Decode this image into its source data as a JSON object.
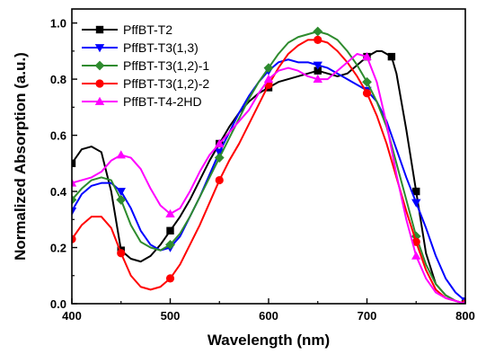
{
  "chart_data": {
    "type": "line",
    "xlabel": "Wavelength (nm)",
    "ylabel": "Normalized Absorption (a.u.)",
    "xlim": [
      400,
      800
    ],
    "ylim": [
      0.0,
      1.05
    ],
    "x_ticks": [
      400,
      500,
      600,
      700,
      800
    ],
    "x_tick_labels": [
      "400",
      "500",
      "600",
      "700",
      "800"
    ],
    "y_ticks": [
      0.0,
      0.2,
      0.4,
      0.6,
      0.8,
      1.0
    ],
    "y_tick_labels": [
      "0.0",
      "0.2",
      "0.4",
      "0.6",
      "0.8",
      "1.0"
    ],
    "legend_position": "top-left",
    "grid": false,
    "series": [
      {
        "name": "PffBT-T2",
        "color": "#000000",
        "marker": "square",
        "x": [
          400,
          410,
          420,
          430,
          440,
          450,
          460,
          470,
          480,
          490,
          500,
          510,
          520,
          530,
          540,
          550,
          560,
          570,
          580,
          590,
          600,
          610,
          620,
          630,
          640,
          650,
          660,
          670,
          680,
          690,
          700,
          710,
          715,
          720,
          725,
          730,
          740,
          750,
          760,
          770,
          780,
          790,
          800
        ],
        "y": [
          0.5,
          0.55,
          0.56,
          0.54,
          0.4,
          0.19,
          0.16,
          0.15,
          0.17,
          0.21,
          0.26,
          0.31,
          0.37,
          0.44,
          0.51,
          0.57,
          0.63,
          0.68,
          0.72,
          0.75,
          0.77,
          0.79,
          0.8,
          0.81,
          0.82,
          0.83,
          0.82,
          0.81,
          0.82,
          0.85,
          0.88,
          0.9,
          0.9,
          0.89,
          0.88,
          0.82,
          0.62,
          0.4,
          0.18,
          0.07,
          0.03,
          0.01,
          0.0
        ]
      },
      {
        "name": "PffBT-T3(1,3)",
        "color": "#0000ff",
        "marker": "triangle-down",
        "x": [
          400,
          410,
          420,
          430,
          440,
          450,
          460,
          470,
          480,
          490,
          500,
          510,
          520,
          530,
          540,
          550,
          560,
          570,
          580,
          590,
          600,
          610,
          620,
          630,
          640,
          650,
          660,
          670,
          680,
          690,
          700,
          710,
          720,
          730,
          740,
          750,
          760,
          770,
          780,
          790,
          800
        ],
        "y": [
          0.33,
          0.39,
          0.42,
          0.43,
          0.43,
          0.4,
          0.34,
          0.26,
          0.21,
          0.19,
          0.2,
          0.24,
          0.31,
          0.38,
          0.46,
          0.54,
          0.61,
          0.68,
          0.74,
          0.79,
          0.83,
          0.86,
          0.87,
          0.86,
          0.86,
          0.85,
          0.84,
          0.82,
          0.8,
          0.78,
          0.76,
          0.72,
          0.65,
          0.55,
          0.45,
          0.36,
          0.27,
          0.17,
          0.09,
          0.04,
          0.01
        ]
      },
      {
        "name": "PffBT-T3(1,2)-1",
        "color": "#2e8b2e",
        "marker": "diamond",
        "x": [
          400,
          410,
          420,
          430,
          440,
          450,
          460,
          470,
          480,
          490,
          500,
          510,
          520,
          530,
          540,
          550,
          560,
          570,
          580,
          590,
          600,
          610,
          620,
          630,
          640,
          650,
          660,
          670,
          680,
          690,
          700,
          710,
          720,
          730,
          740,
          750,
          760,
          770,
          780,
          790,
          800
        ],
        "y": [
          0.37,
          0.41,
          0.44,
          0.45,
          0.44,
          0.37,
          0.28,
          0.22,
          0.2,
          0.19,
          0.21,
          0.25,
          0.31,
          0.38,
          0.45,
          0.52,
          0.59,
          0.66,
          0.73,
          0.79,
          0.84,
          0.89,
          0.93,
          0.95,
          0.96,
          0.97,
          0.96,
          0.94,
          0.9,
          0.85,
          0.79,
          0.72,
          0.63,
          0.5,
          0.37,
          0.24,
          0.14,
          0.07,
          0.03,
          0.01,
          0.0
        ]
      },
      {
        "name": "PffBT-T3(1,2)-2",
        "color": "#ff0000",
        "marker": "circle",
        "x": [
          400,
          410,
          420,
          430,
          440,
          450,
          460,
          470,
          480,
          490,
          500,
          510,
          520,
          530,
          540,
          550,
          560,
          570,
          580,
          590,
          600,
          610,
          620,
          630,
          640,
          650,
          660,
          670,
          680,
          690,
          700,
          710,
          720,
          730,
          740,
          750,
          760,
          770,
          780,
          790,
          800
        ],
        "y": [
          0.23,
          0.28,
          0.31,
          0.31,
          0.27,
          0.18,
          0.1,
          0.06,
          0.05,
          0.06,
          0.09,
          0.14,
          0.21,
          0.28,
          0.36,
          0.44,
          0.51,
          0.57,
          0.64,
          0.71,
          0.78,
          0.84,
          0.89,
          0.92,
          0.94,
          0.94,
          0.93,
          0.9,
          0.86,
          0.81,
          0.75,
          0.67,
          0.57,
          0.45,
          0.33,
          0.22,
          0.12,
          0.05,
          0.02,
          0.01,
          0.0
        ]
      },
      {
        "name": "PffBT-T4-2HD",
        "color": "#ff00ff",
        "marker": "triangle-up",
        "x": [
          400,
          410,
          420,
          430,
          440,
          450,
          460,
          470,
          480,
          490,
          500,
          510,
          520,
          530,
          540,
          550,
          560,
          570,
          580,
          590,
          600,
          610,
          620,
          630,
          640,
          650,
          660,
          670,
          680,
          690,
          700,
          710,
          720,
          730,
          740,
          750,
          760,
          770,
          780,
          790,
          800
        ],
        "y": [
          0.43,
          0.44,
          0.45,
          0.47,
          0.51,
          0.53,
          0.52,
          0.48,
          0.41,
          0.35,
          0.32,
          0.34,
          0.4,
          0.47,
          0.53,
          0.57,
          0.61,
          0.65,
          0.69,
          0.75,
          0.8,
          0.83,
          0.84,
          0.83,
          0.81,
          0.8,
          0.8,
          0.83,
          0.86,
          0.89,
          0.88,
          0.79,
          0.64,
          0.46,
          0.3,
          0.17,
          0.09,
          0.04,
          0.02,
          0.01,
          0.0
        ]
      }
    ]
  }
}
